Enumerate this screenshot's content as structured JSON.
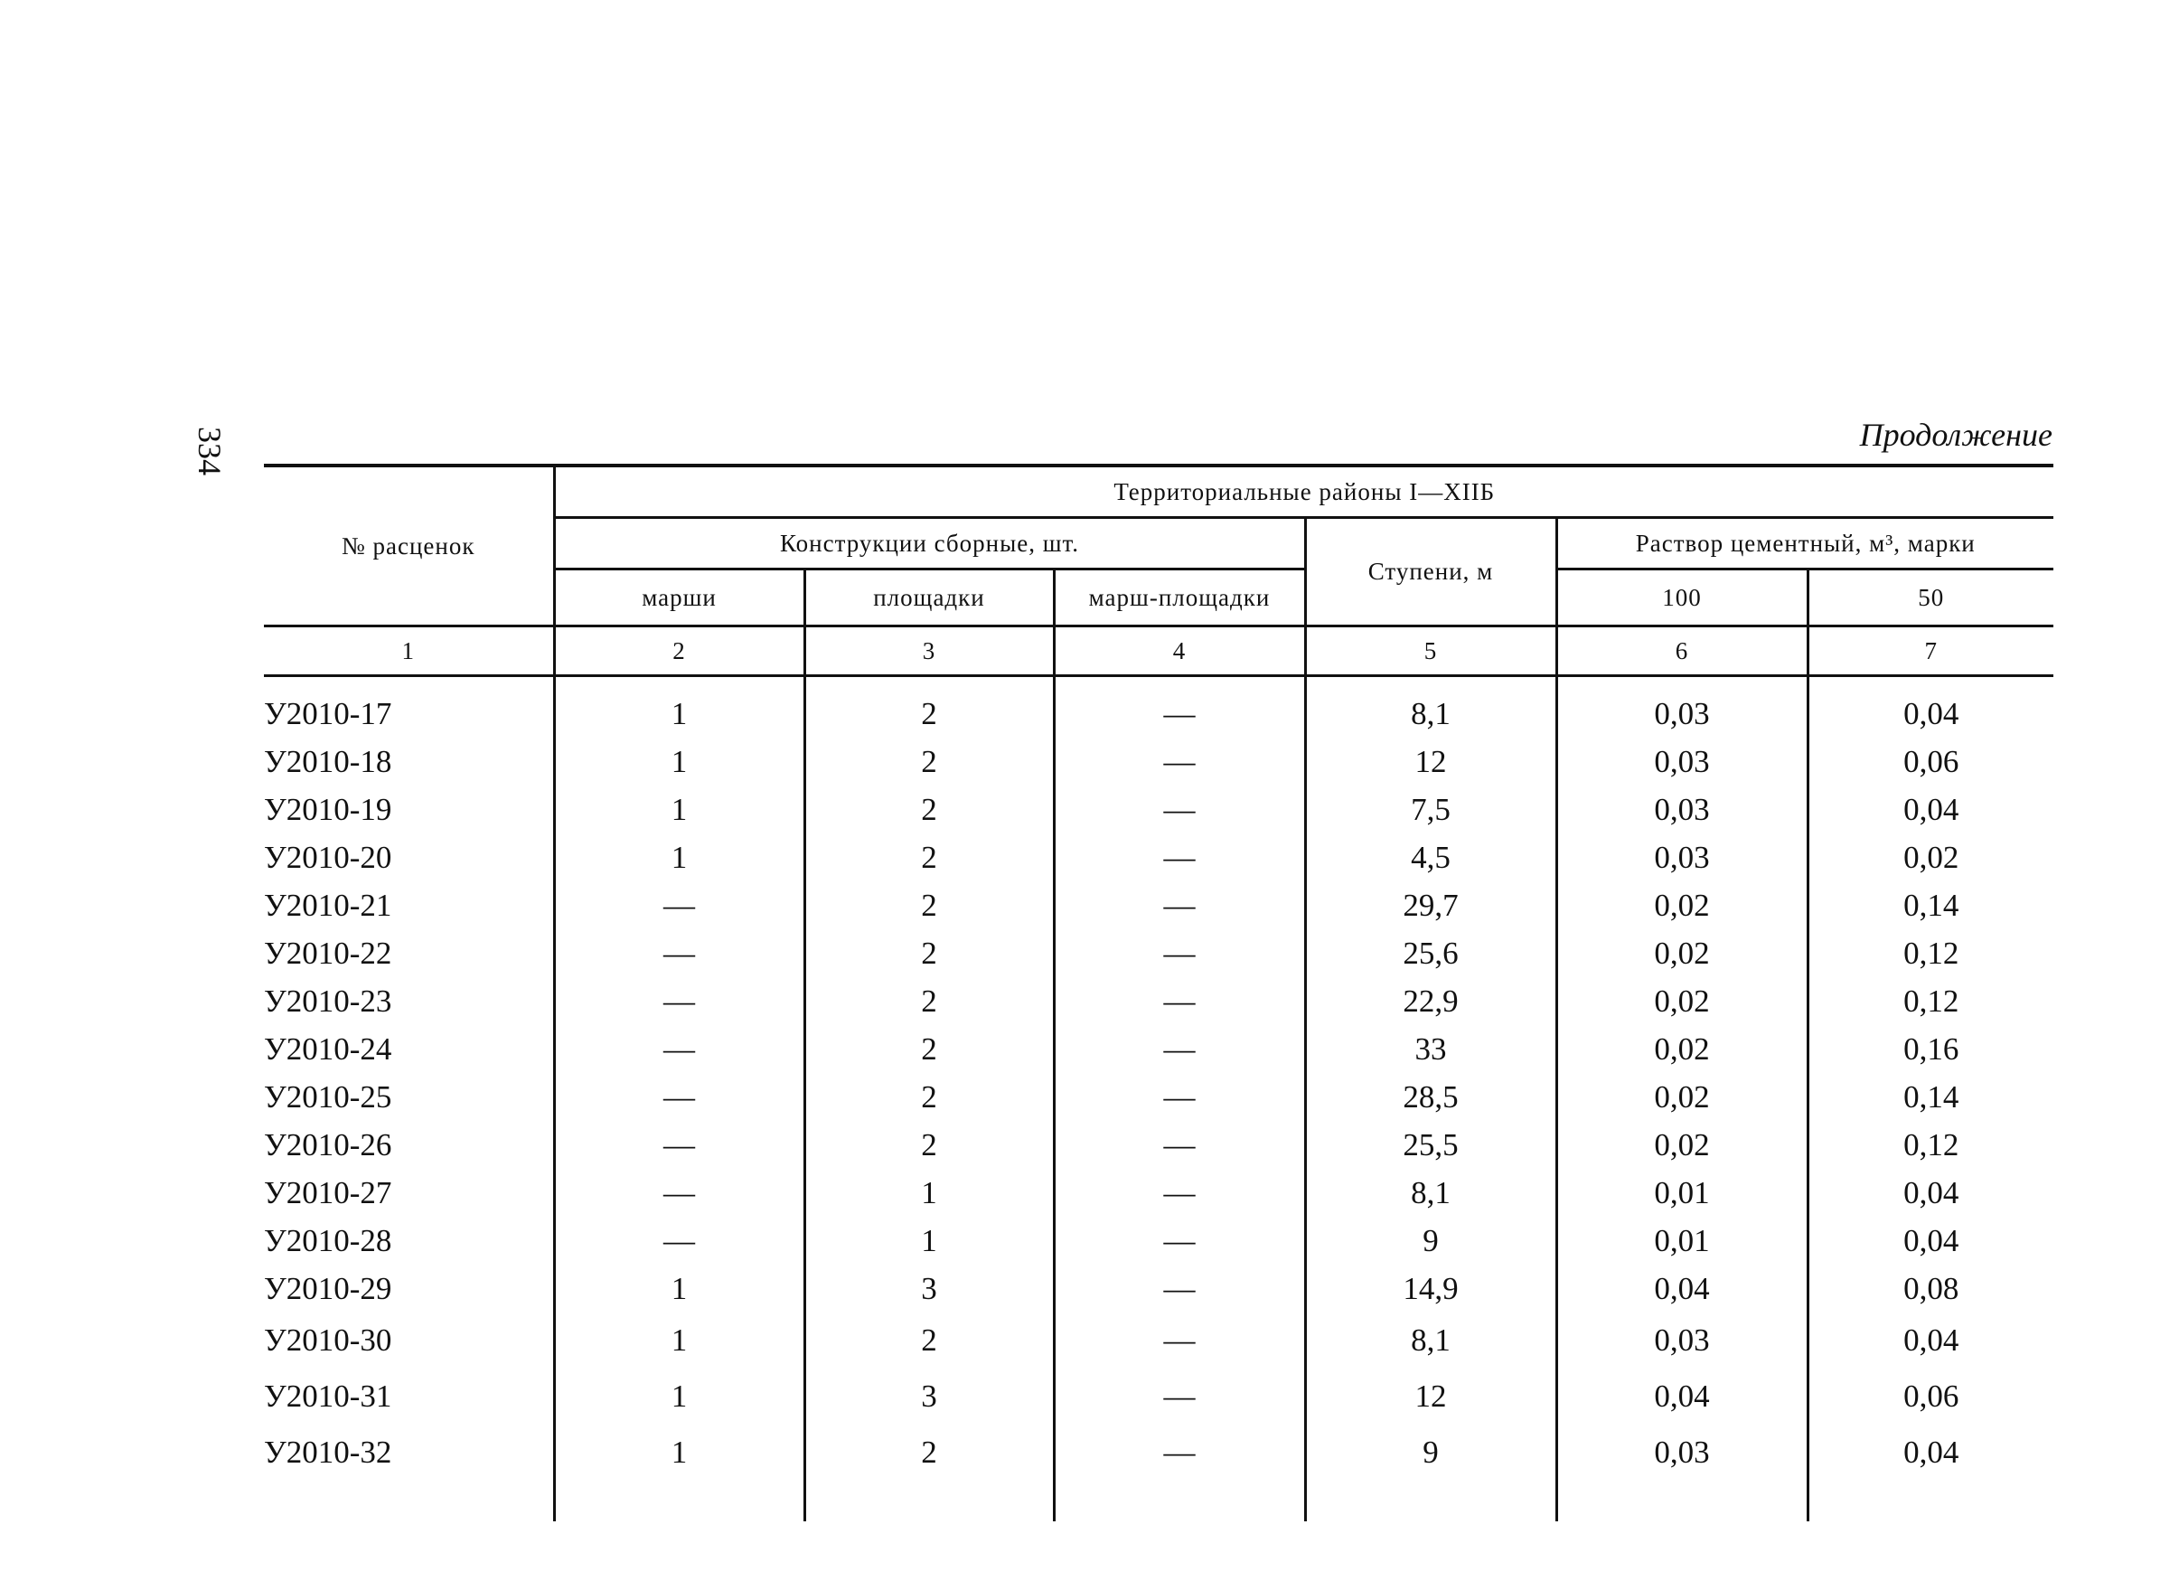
{
  "page_number": "334",
  "continuation": "Продолжение",
  "header": {
    "col1": "№ расценок",
    "group": "Территориальные районы I—XIIБ",
    "constructions": "Конструкции сборные, шт.",
    "marshi": "марши",
    "ploshchadki": "площадки",
    "marsh_ploshchadki": "марш-площадки",
    "steps": "Ступени, м",
    "mortar": "Раствор цементный, м³, марки",
    "grade100": "100",
    "grade50": "50",
    "numbers": [
      "1",
      "2",
      "3",
      "4",
      "5",
      "6",
      "7"
    ]
  },
  "rows": [
    [
      "У2010-17",
      "1",
      "2",
      "—",
      "8,1",
      "0,03",
      "0,04"
    ],
    [
      "У2010-18",
      "1",
      "2",
      "—",
      "12",
      "0,03",
      "0,06"
    ],
    [
      "У2010-19",
      "1",
      "2",
      "—",
      "7,5",
      "0,03",
      "0,04"
    ],
    [
      "У2010-20",
      "1",
      "2",
      "—",
      "4,5",
      "0,03",
      "0,02"
    ],
    [
      "У2010-21",
      "—",
      "2",
      "—",
      "29,7",
      "0,02",
      "0,14"
    ],
    [
      "У2010-22",
      "—",
      "2",
      "—",
      "25,6",
      "0,02",
      "0,12"
    ],
    [
      "У2010-23",
      "—",
      "2",
      "—",
      "22,9",
      "0,02",
      "0,12"
    ],
    [
      "У2010-24",
      "—",
      "2",
      "—",
      "33",
      "0,02",
      "0,16"
    ],
    [
      "У2010-25",
      "—",
      "2",
      "—",
      "28,5",
      "0,02",
      "0,14"
    ],
    [
      "У2010-26",
      "—",
      "2",
      "—",
      "25,5",
      "0,02",
      "0,12"
    ],
    [
      "У2010-27",
      "—",
      "1",
      "—",
      "8,1",
      "0,01",
      "0,04"
    ],
    [
      "У2010-28",
      "—",
      "1",
      "—",
      "9",
      "0,01",
      "0,04"
    ],
    [
      "У2010-29",
      "1",
      "3",
      "—",
      "14,9",
      "0,04",
      "0,08"
    ],
    [
      "У2010-30",
      "1",
      "2",
      "—",
      "8,1",
      "0,03",
      "0,04"
    ],
    [
      "У2010-31",
      "1",
      "3",
      "—",
      "12",
      "0,04",
      "0,06"
    ],
    [
      "У2010-32",
      "1",
      "2",
      "—",
      "9",
      "0,03",
      "0,04"
    ]
  ]
}
